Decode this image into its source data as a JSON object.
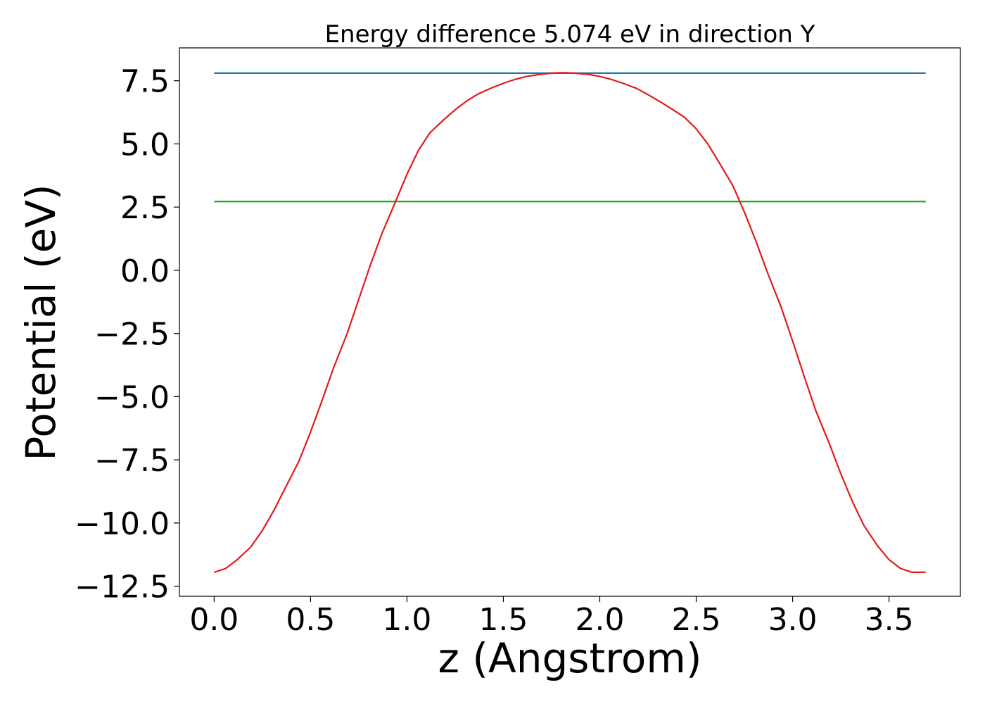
{
  "chart_data": {
    "type": "line",
    "title": "Energy difference 5.074 eV in direction Y",
    "xlabel": "z (Angstrom)",
    "ylabel": "Potential (eV)",
    "xlim": [
      -0.18,
      3.87
    ],
    "ylim": [
      -12.9,
      8.8
    ],
    "xticks": [
      0.0,
      0.5,
      1.0,
      1.5,
      2.0,
      2.5,
      3.0,
      3.5
    ],
    "xtick_labels": [
      "0.0",
      "0.5",
      "1.0",
      "1.5",
      "2.0",
      "2.5",
      "3.0",
      "3.5"
    ],
    "yticks": [
      7.5,
      5.0,
      2.5,
      0.0,
      -2.5,
      -5.0,
      -7.5,
      -10.0,
      -12.5
    ],
    "ytick_labels": [
      "7.5",
      "5.0",
      "2.5",
      "0.0",
      "−2.5",
      "−5.0",
      "−7.5",
      "−10.0",
      "−12.5"
    ],
    "grid": false,
    "series": [
      {
        "color": "#1f77b4",
        "x": [
          0.0,
          3.69
        ],
        "y": [
          7.8,
          7.8
        ]
      },
      {
        "color": "#2ca02c",
        "x": [
          0.0,
          3.69
        ],
        "y": [
          2.72,
          2.72
        ]
      },
      {
        "color": "#e31a1c",
        "x": [
          0.0,
          0.06,
          0.12,
          0.19,
          0.25,
          0.31,
          0.37,
          0.44,
          0.5,
          0.56,
          0.62,
          0.69,
          0.75,
          0.81,
          0.87,
          0.94,
          1.0,
          1.06,
          1.12,
          1.19,
          1.25,
          1.31,
          1.37,
          1.44,
          1.5,
          1.56,
          1.62,
          1.69,
          1.75,
          1.81,
          1.87,
          1.94,
          2.0,
          2.06,
          2.12,
          2.19,
          2.25,
          2.31,
          2.37,
          2.44,
          2.5,
          2.56,
          2.62,
          2.69,
          2.75,
          2.81,
          2.87,
          2.94,
          3.0,
          3.06,
          3.12,
          3.19,
          3.25,
          3.31,
          3.37,
          3.44,
          3.5,
          3.56,
          3.62,
          3.69
        ],
        "y": [
          -11.95,
          -11.8,
          -11.45,
          -10.95,
          -10.3,
          -9.5,
          -8.6,
          -7.55,
          -6.4,
          -5.15,
          -3.85,
          -2.5,
          -1.15,
          0.2,
          1.45,
          2.7,
          3.8,
          4.75,
          5.45,
          5.95,
          6.35,
          6.7,
          6.98,
          7.22,
          7.4,
          7.55,
          7.67,
          7.75,
          7.8,
          7.82,
          7.8,
          7.75,
          7.67,
          7.55,
          7.4,
          7.2,
          6.95,
          6.68,
          6.4,
          6.05,
          5.6,
          5.0,
          4.25,
          3.35,
          2.3,
          1.15,
          -0.1,
          -1.45,
          -2.8,
          -4.2,
          -5.55,
          -6.85,
          -8.05,
          -9.15,
          -10.1,
          -10.9,
          -11.45,
          -11.8,
          -11.95,
          -11.95
        ]
      }
    ]
  }
}
